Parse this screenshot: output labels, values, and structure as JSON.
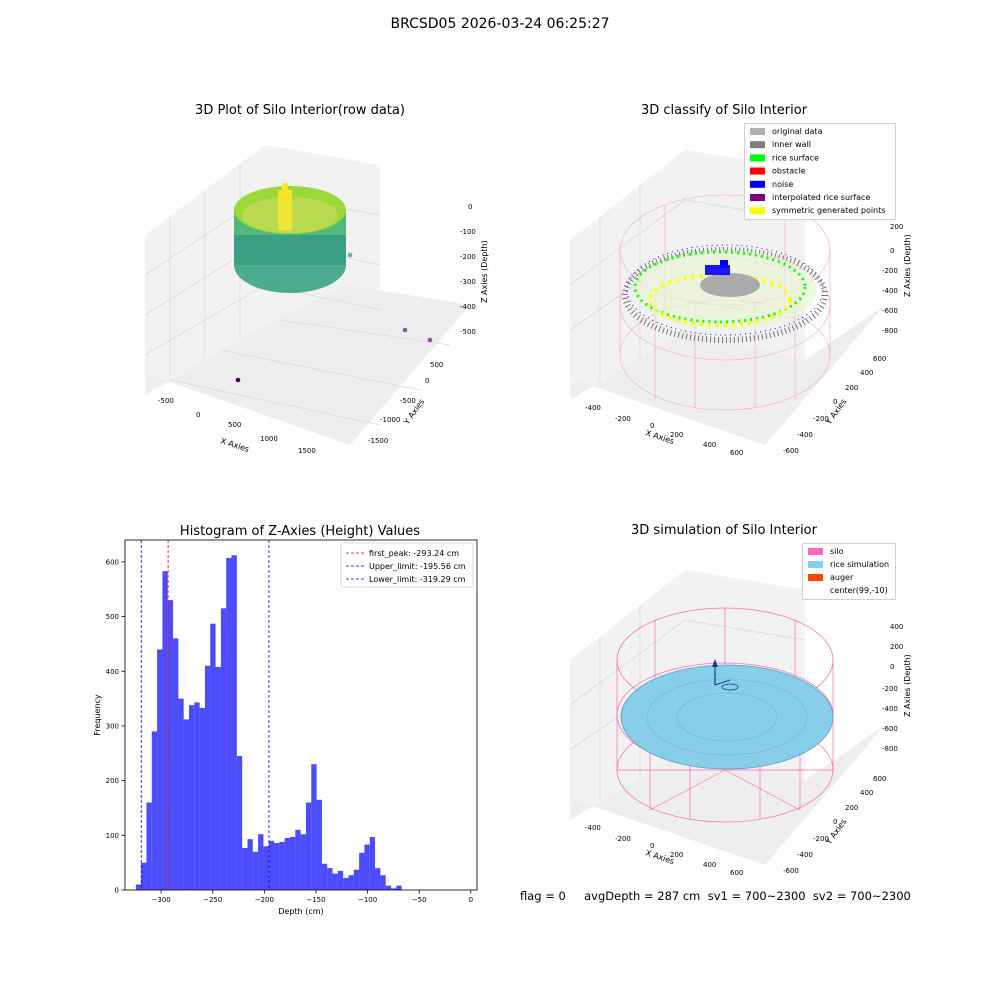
{
  "figure": {
    "title": "BRCSD05 2026-03-24 06:25:27",
    "bottom_info": "flag = 0     avgDepth = 287 cm  sv1 = 700~2300  sv2 = 700~2300"
  },
  "panels": {
    "raw": {
      "title": "3D Plot of Silo Interior(row data)",
      "xlabel": "X Axies",
      "ylabel": "Y Axies",
      "zlabel": "Z Axies (Depth)",
      "xticks": [
        "-500",
        "0",
        "500",
        "1000",
        "1500"
      ],
      "yticks": [
        "500",
        "0",
        "-500",
        "-1000",
        "-1500"
      ],
      "zticks": [
        "0",
        "-100",
        "-200",
        "-300",
        "-400",
        "-500"
      ]
    },
    "classify": {
      "title": "3D classify of Silo Interior",
      "xlabel": "X Axies",
      "ylabel": "Y Axies",
      "zlabel": "Z Axies (Depth)",
      "xticks": [
        "-400",
        "-200",
        "0",
        "200",
        "400",
        "600"
      ],
      "yticks": [
        "600",
        "400",
        "200",
        "0",
        "-200",
        "-400",
        "-600"
      ],
      "zticks": [
        "200",
        "0",
        "-200",
        "-400",
        "-600",
        "-800"
      ],
      "legend": [
        {
          "label": "original data",
          "color": "#b0b0b0"
        },
        {
          "label": "inner wall",
          "color": "#808080"
        },
        {
          "label": "rice surface",
          "color": "#00ff00"
        },
        {
          "label": "obstacle",
          "color": "#ff0000"
        },
        {
          "label": "noise",
          "color": "#0000ff"
        },
        {
          "label": "interpolated rice surface",
          "color": "#800080"
        },
        {
          "label": "symmetric generated points",
          "color": "#ffff00"
        }
      ]
    },
    "simulation": {
      "title": "3D simulation of Silo Interior",
      "xlabel": "X Axies",
      "ylabel": "Y Axies",
      "zlabel": "Z Axies (Depth)",
      "xticks": [
        "-400",
        "-200",
        "0",
        "200",
        "400",
        "600"
      ],
      "yticks": [
        "600",
        "400",
        "200",
        "0",
        "-200",
        "-400",
        "-600"
      ],
      "zticks": [
        "400",
        "200",
        "0",
        "-200",
        "-400",
        "-600",
        "-800"
      ],
      "legend": [
        {
          "label": "silo",
          "color": "#ff69b4"
        },
        {
          "label": "rice simulation",
          "color": "#87ceeb"
        },
        {
          "label": "auger",
          "color": "#ff4500"
        },
        {
          "label": "center(99,-10)",
          "color": "#ffffff"
        }
      ]
    }
  },
  "chart_data": {
    "type": "bar",
    "title": "Histogram of Z-Axies (Height) Values",
    "xlabel": "Depth (cm)",
    "ylabel": "Frequency",
    "xlim": [
      -335,
      6
    ],
    "ylim": [
      0,
      640
    ],
    "xticks": [
      -300,
      -250,
      -200,
      -150,
      -100,
      -50,
      0
    ],
    "yticks": [
      0,
      100,
      200,
      300,
      400,
      500,
      600
    ],
    "bar_color": "#0000ff",
    "bins_start": -324.5,
    "bin_width": 5.15,
    "values": [
      10,
      50,
      160,
      290,
      440,
      583,
      530,
      460,
      350,
      312,
      338,
      343,
      333,
      410,
      487,
      408,
      515,
      607,
      612,
      245,
      77,
      93,
      70,
      102,
      80,
      90,
      86,
      88,
      95,
      97,
      110,
      102,
      160,
      230,
      165,
      48,
      40,
      30,
      35,
      22,
      27,
      37,
      68,
      83,
      97,
      40,
      27,
      8,
      3,
      8
    ],
    "reference_lines": [
      {
        "label": "first_peak: -293.24 cm",
        "x": -293.24,
        "color": "#ff0000"
      },
      {
        "label": "Upper_limit: -195.56 cm",
        "x": -195.56,
        "color": "#0000ff"
      },
      {
        "label": "Lower_limit: -319.29 cm",
        "x": -319.29,
        "color": "#0000ff"
      }
    ],
    "legend_position": "top-right"
  }
}
